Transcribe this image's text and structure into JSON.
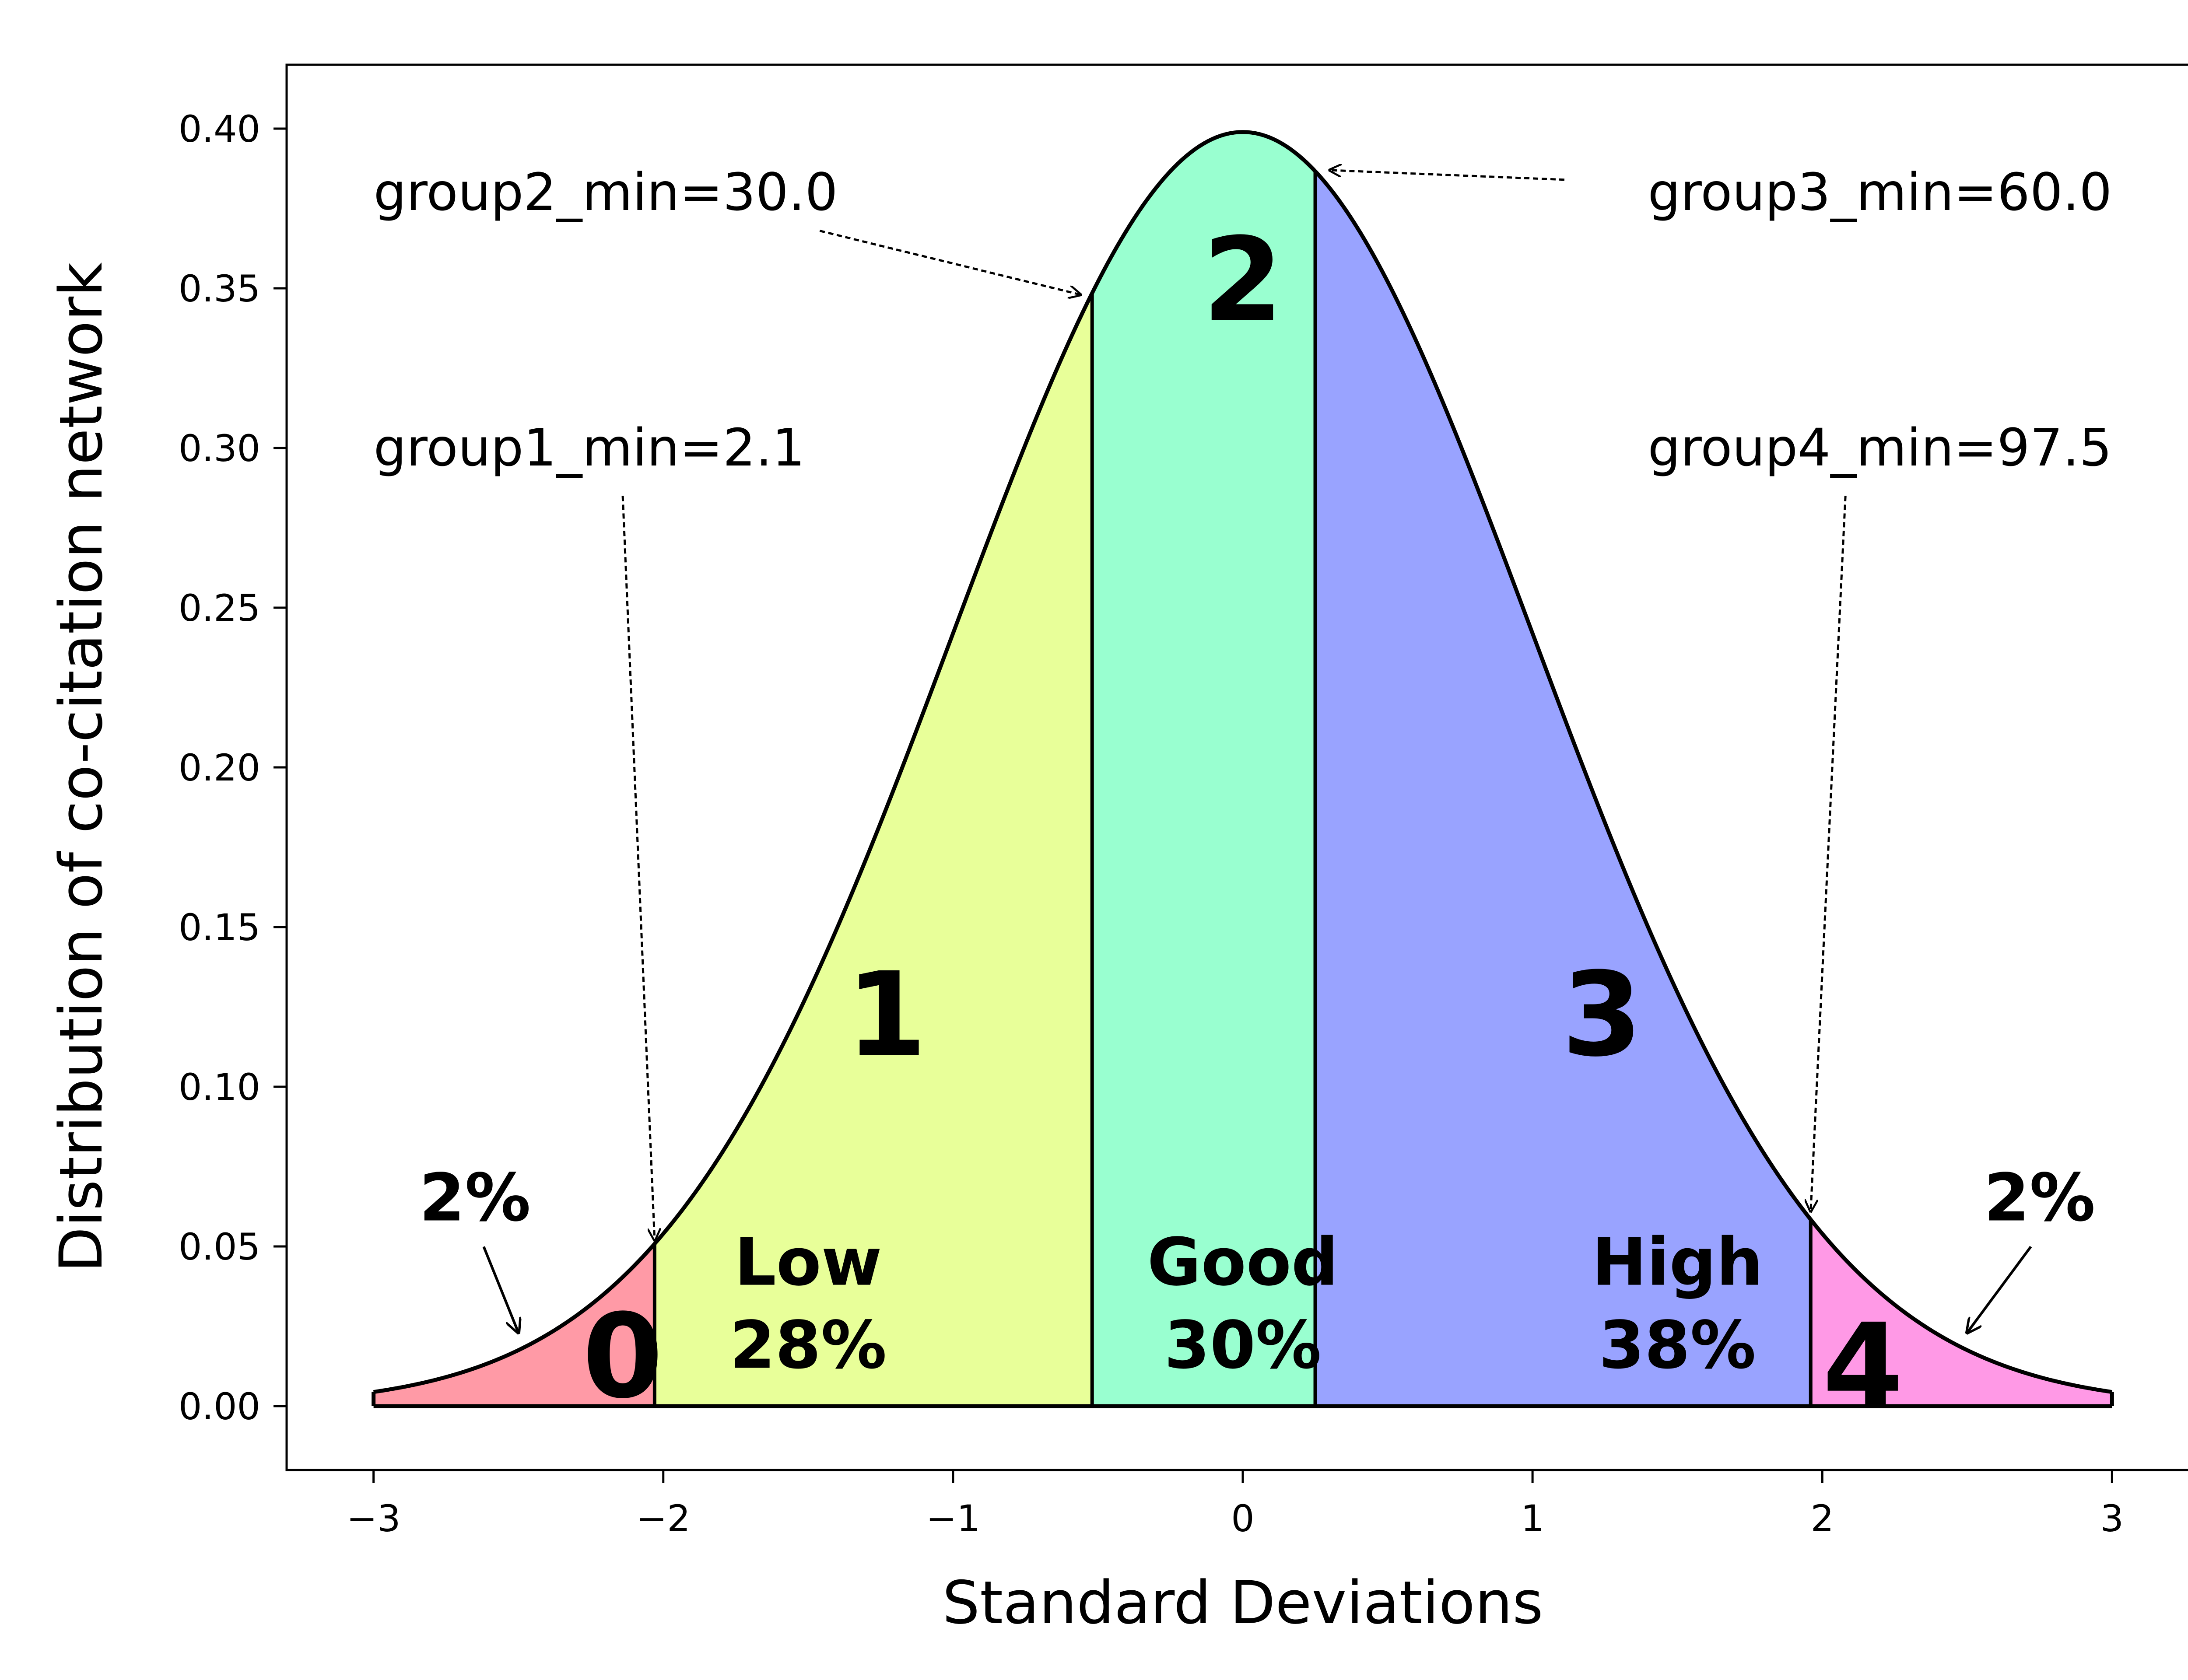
{
  "chart_data": {
    "type": "area",
    "xlabel": "Standard Deviations",
    "ylabel": "Distribution of co-citation network",
    "xlim": [
      -3.3,
      3.3
    ],
    "ylim": [
      -0.02,
      0.42
    ],
    "x_ticks": [
      {
        "value": -3,
        "label": "−3"
      },
      {
        "value": -2,
        "label": "−2"
      },
      {
        "value": -1,
        "label": "−1"
      },
      {
        "value": 0,
        "label": "0"
      },
      {
        "value": 1,
        "label": "1"
      },
      {
        "value": 2,
        "label": "2"
      },
      {
        "value": 3,
        "label": "3"
      }
    ],
    "y_ticks": [
      {
        "value": 0.0,
        "label": "0.00"
      },
      {
        "value": 0.05,
        "label": "0.05"
      },
      {
        "value": 0.1,
        "label": "0.10"
      },
      {
        "value": 0.15,
        "label": "0.15"
      },
      {
        "value": 0.2,
        "label": "0.20"
      },
      {
        "value": 0.25,
        "label": "0.25"
      },
      {
        "value": 0.3,
        "label": "0.30"
      },
      {
        "value": 0.35,
        "label": "0.35"
      },
      {
        "value": 0.4,
        "label": "0.40"
      }
    ],
    "curve": {
      "type": "normal_pdf",
      "mean": 0,
      "std": 1,
      "x_range": [
        -3,
        3
      ]
    },
    "regions": [
      {
        "id": "0",
        "x_from": -3,
        "x_to": -2.03,
        "color": "#ff9aa6",
        "number": "0"
      },
      {
        "id": "1",
        "x_from": -2.03,
        "x_to": -0.52,
        "color": "#e8ff99",
        "number": "1",
        "name": "Low",
        "percent": "28%"
      },
      {
        "id": "2",
        "x_from": -0.52,
        "x_to": 0.25,
        "color": "#99ffd0",
        "number": "2",
        "name": "Good",
        "percent": "30%"
      },
      {
        "id": "3",
        "x_from": 0.25,
        "x_to": 1.96,
        "color": "#99a3ff",
        "number": "3",
        "name": "High",
        "percent": "38%"
      },
      {
        "id": "4",
        "x_from": 1.96,
        "x_to": 3,
        "color": "#ff99e6",
        "number": "4"
      }
    ],
    "tail_labels": [
      {
        "text": "2%",
        "text_x": -2.65,
        "text_y": 0.065,
        "arrow_to_x": -2.5,
        "arrow_to_y": 0.023
      },
      {
        "text": "2%",
        "text_x": 2.75,
        "text_y": 0.065,
        "arrow_to_x": 2.5,
        "arrow_to_y": 0.023
      }
    ],
    "annotations": [
      {
        "text": "group1_min=2.1",
        "text_x": -3.0,
        "text_y": 0.3,
        "anchor": "start",
        "tail_x": -2.14,
        "tail_y": 0.285,
        "head_x": -2.03,
        "head_y": 0.052
      },
      {
        "text": "group2_min=30.0",
        "text_x": -3.0,
        "text_y": 0.38,
        "anchor": "start",
        "tail_x": -1.46,
        "tail_y": 0.368,
        "head_x": -0.56,
        "head_y": 0.348
      },
      {
        "text": "group3_min=60.0",
        "text_x": 3.0,
        "text_y": 0.38,
        "anchor": "end",
        "tail_x": 1.11,
        "tail_y": 0.384,
        "head_x": 0.3,
        "head_y": 0.387
      },
      {
        "text": "group4_min=97.5",
        "text_x": 3.0,
        "text_y": 0.3,
        "anchor": "end",
        "tail_x": 2.08,
        "tail_y": 0.285,
        "head_x": 1.96,
        "head_y": 0.061
      }
    ],
    "number_positions": [
      {
        "id": "0",
        "x": -2.14,
        "y": 0.003
      },
      {
        "id": "1",
        "x": -1.23,
        "y": 0.11
      },
      {
        "id": "2",
        "x": 0.0,
        "y": 0.34
      },
      {
        "id": "3",
        "x": 1.24,
        "y": 0.11
      },
      {
        "id": "4",
        "x": 2.14,
        "y": 0.0
      }
    ],
    "label_positions": [
      {
        "id": "1",
        "x": -1.5,
        "y1": 0.038,
        "y2": 0.012
      },
      {
        "id": "2",
        "x": 0.0,
        "y1": 0.038,
        "y2": 0.012
      },
      {
        "id": "3",
        "x": 1.5,
        "y1": 0.038,
        "y2": 0.012
      }
    ],
    "grid": false,
    "legend": "none"
  }
}
